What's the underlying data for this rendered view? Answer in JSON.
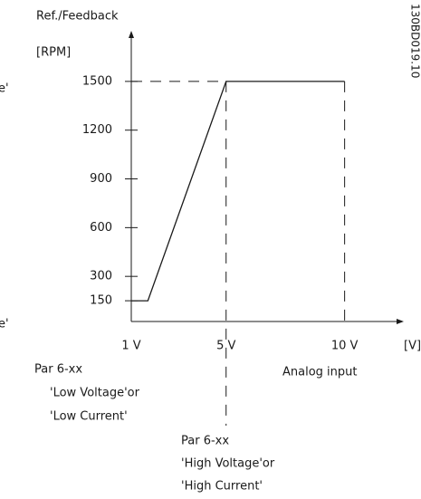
{
  "chart_data": {
    "type": "line",
    "ylabel": "Ref./Feedback",
    "yunit": "[RPM]",
    "xlabel": "Analog input",
    "xunit": "[V]",
    "code": "130BD019.10",
    "x": [
      1,
      1.7,
      5,
      10
    ],
    "series": [
      {
        "name": null,
        "color": "#1a1a1a",
        "values": [
          150,
          150,
          1500,
          1500
        ]
      }
    ],
    "xlim": [
      1,
      12
    ],
    "ylim": [
      0,
      1700
    ],
    "xticks": [
      {
        "value": 1,
        "label": "1 V"
      },
      {
        "value": 5,
        "label": "5 V"
      },
      {
        "value": 10,
        "label": "10 V"
      }
    ],
    "yticks": [
      150,
      300,
      600,
      900,
      1200,
      1500
    ],
    "annotations": [
      "e'",
      "e'",
      "Par 6-xx",
      "'Low Voltage'or",
      "'Low Current'",
      "Par 6-xx",
      "'High Voltage'or",
      "'High Current'"
    ]
  }
}
